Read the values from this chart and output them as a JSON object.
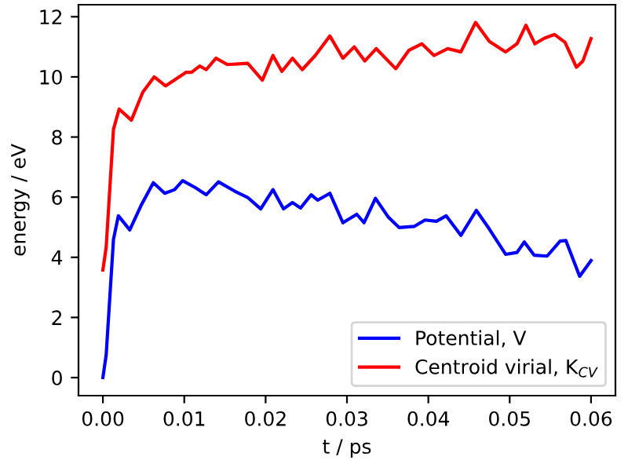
{
  "chart_data": {
    "type": "line",
    "xlabel": "t / ps",
    "ylabel": "energy / eV",
    "legend": "lower right",
    "grid": false,
    "xlim": [
      -0.003,
      0.063
    ],
    "ylim": [
      -0.6,
      12.4
    ],
    "xticks": [
      {
        "value": 0,
        "label": "0.00"
      },
      {
        "value": 0.01,
        "label": "0.01"
      },
      {
        "value": 0.02,
        "label": "0.02"
      },
      {
        "value": 0.03,
        "label": "0.03"
      },
      {
        "value": 0.04,
        "label": "0.04"
      },
      {
        "value": 0.05,
        "label": "0.05"
      },
      {
        "value": 0.06,
        "label": "0.06"
      }
    ],
    "yticks": [
      0,
      2,
      4,
      6,
      8,
      10,
      12
    ],
    "series": [
      {
        "name": "Potential, V",
        "color": "#0000ff",
        "x": [
          0,
          0.0004,
          0.0013,
          0.0019,
          0.0033,
          0.0047,
          0.0062,
          0.0076,
          0.0088,
          0.0098,
          0.0114,
          0.0127,
          0.0142,
          0.0162,
          0.0178,
          0.0194,
          0.0209,
          0.0222,
          0.0233,
          0.0243,
          0.0256,
          0.0264,
          0.0279,
          0.0295,
          0.0312,
          0.0321,
          0.0335,
          0.0351,
          0.0364,
          0.0383,
          0.0396,
          0.041,
          0.0422,
          0.044,
          0.0459,
          0.0475,
          0.0495,
          0.0509,
          0.0518,
          0.053,
          0.0546,
          0.0562,
          0.0569,
          0.0586,
          0.06
        ],
        "values": [
          0,
          0.75,
          4.6,
          5.38,
          4.91,
          5.73,
          6.48,
          6.13,
          6.25,
          6.55,
          6.31,
          6.08,
          6.51,
          6.2,
          5.99,
          5.61,
          6.25,
          5.61,
          5.82,
          5.64,
          6.08,
          5.9,
          6.13,
          5.15,
          5.43,
          5.15,
          5.96,
          5.33,
          4.99,
          5.03,
          5.24,
          5.2,
          5.38,
          4.73,
          5.56,
          4.94,
          4.1,
          4.16,
          4.51,
          4.07,
          4.04,
          4.54,
          4.56,
          3.37,
          3.89
        ]
      },
      {
        "name": "Centroid virial, K$_{CV}$",
        "color": "#ff0000",
        "x": [
          0,
          0.0004,
          0.0013,
          0.002,
          0.0035,
          0.0049,
          0.0063,
          0.0077,
          0.0102,
          0.0109,
          0.0119,
          0.0127,
          0.0139,
          0.0153,
          0.0178,
          0.0196,
          0.0209,
          0.022,
          0.0233,
          0.0245,
          0.0261,
          0.0279,
          0.0295,
          0.0309,
          0.0322,
          0.0336,
          0.036,
          0.0376,
          0.0392,
          0.0407,
          0.0424,
          0.044,
          0.0458,
          0.0475,
          0.0495,
          0.0509,
          0.052,
          0.0531,
          0.0543,
          0.0555,
          0.0568,
          0.0582,
          0.059,
          0.06
        ],
        "values": [
          3.58,
          4.33,
          8.26,
          8.93,
          8.56,
          9.49,
          10.0,
          9.7,
          10.15,
          10.15,
          10.36,
          10.24,
          10.62,
          10.41,
          10.45,
          9.89,
          10.71,
          10.18,
          10.62,
          10.24,
          10.71,
          11.36,
          10.62,
          11.0,
          10.53,
          10.94,
          10.27,
          10.88,
          11.1,
          10.71,
          10.94,
          10.83,
          11.81,
          11.18,
          10.83,
          11.1,
          11.72,
          11.1,
          11.29,
          11.41,
          11.15,
          10.32,
          10.53,
          11.27
        ]
      }
    ]
  }
}
